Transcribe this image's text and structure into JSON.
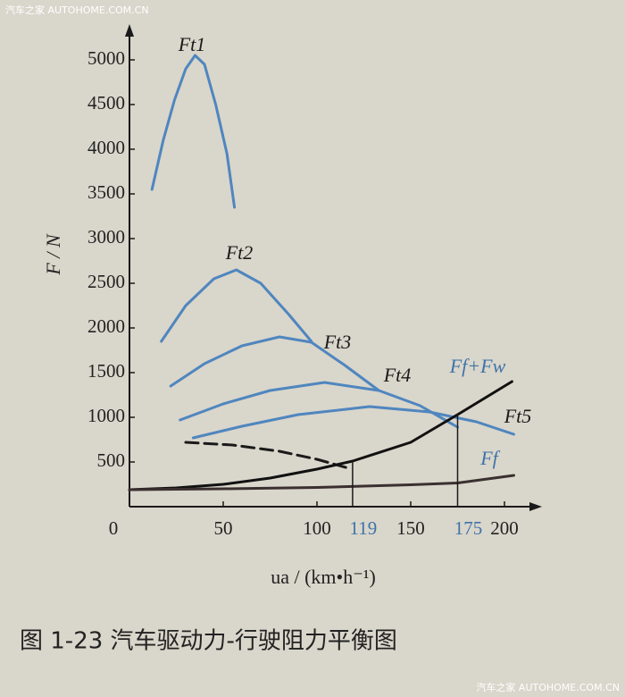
{
  "chart_data": {
    "type": "line",
    "watermark_top": "汽车之家 AUTOHOME.COM.CN",
    "watermark_bottom": "汽车之家 AUTOHOME.COM.CN",
    "caption": "图 1-23   汽车驱动力-行驶阻力平衡图",
    "y_label": "F / N",
    "x_label": "ua / (km•h⁻¹)",
    "xlim": [
      0,
      220
    ],
    "ylim": [
      0,
      5400
    ],
    "xticks": [
      0,
      50,
      100,
      150,
      200
    ],
    "yticks": [
      500,
      1000,
      1500,
      2000,
      2500,
      3000,
      3500,
      4000,
      4500,
      5000
    ],
    "markers": [
      119,
      175
    ],
    "marker_color": "#3f73a8",
    "series": [
      {
        "name": "Ft1",
        "color": "#4f86bf",
        "label_color": "#1a1a1a",
        "dashed": false,
        "x": [
          12,
          18,
          24,
          30,
          35,
          40,
          46,
          52,
          56
        ],
        "values": [
          3550,
          4100,
          4550,
          4900,
          5050,
          4950,
          4500,
          3950,
          3350
        ]
      },
      {
        "name": "Ft2",
        "color": "#4f86bf",
        "label_color": "#1a1a1a",
        "dashed": false,
        "x": [
          17,
          30,
          45,
          57,
          70,
          85,
          97
        ],
        "values": [
          1850,
          2250,
          2550,
          2650,
          2500,
          2150,
          1850
        ]
      },
      {
        "name": "Ft3",
        "color": "#4f86bf",
        "label_color": "#1a1a1a",
        "dashed": false,
        "x": [
          22,
          40,
          60,
          80,
          97,
          115,
          133
        ],
        "values": [
          1350,
          1600,
          1800,
          1900,
          1840,
          1580,
          1300
        ]
      },
      {
        "name": "Ft4",
        "color": "#4f86bf",
        "label_color": "#1a1a1a",
        "dashed": false,
        "x": [
          27,
          50,
          75,
          104,
          133,
          155,
          175
        ],
        "values": [
          970,
          1150,
          1300,
          1390,
          1300,
          1130,
          890
        ]
      },
      {
        "name": "Ft5",
        "color": "#4f86bf",
        "label_color": "#1a1a1a",
        "dashed": false,
        "x": [
          34,
          60,
          90,
          128,
          160,
          185,
          205
        ],
        "values": [
          770,
          900,
          1030,
          1120,
          1060,
          950,
          810
        ]
      },
      {
        "color": "#1a1a1a",
        "dashed": true,
        "x": [
          30,
          55,
          80,
          100,
          117
        ],
        "values": [
          720,
          690,
          620,
          530,
          430
        ]
      },
      {
        "name": "Ff+Fw",
        "color": "#111111",
        "label_color": "#3f73a8",
        "dashed": false,
        "x": [
          0,
          25,
          50,
          75,
          100,
          119,
          150,
          175,
          204
        ],
        "values": [
          190,
          210,
          250,
          320,
          420,
          510,
          720,
          1030,
          1400
        ]
      },
      {
        "name": "Ff",
        "color": "#3b3030",
        "label_color": "#3f73a8",
        "dashed": false,
        "x": [
          0,
          50,
          100,
          150,
          175,
          205
        ],
        "values": [
          190,
          200,
          215,
          245,
          265,
          350
        ]
      }
    ]
  }
}
